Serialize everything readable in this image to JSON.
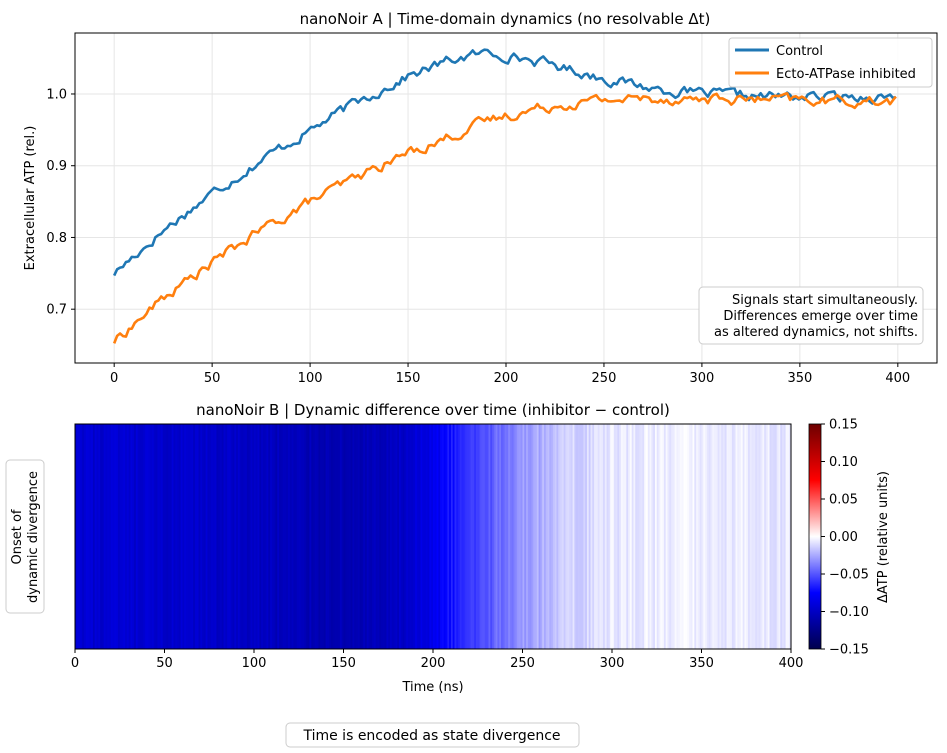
{
  "chart_data": [
    {
      "type": "line",
      "title": "nanoNoir A | Time-domain dynamics (no resolvable Δt)",
      "xlabel": "",
      "ylabel": "Extracellular ATP (rel.)",
      "xlim": [
        -20,
        420
      ],
      "ylim": [
        0.625,
        1.085
      ],
      "x_ticks": [
        0,
        50,
        100,
        150,
        200,
        250,
        300,
        350,
        400
      ],
      "y_ticks": [
        0.7,
        0.8,
        0.9,
        1.0
      ],
      "grid": true,
      "legend_position": "top-right",
      "x": [
        0,
        25,
        50,
        75,
        100,
        125,
        150,
        175,
        190,
        200,
        225,
        250,
        275,
        300,
        325,
        350,
        375,
        400
      ],
      "series": [
        {
          "name": "Control",
          "color": "#1f77b4",
          "values": [
            0.75,
            0.81,
            0.862,
            0.908,
            0.95,
            0.99,
            1.025,
            1.05,
            1.057,
            1.055,
            1.04,
            1.022,
            1.008,
            1.0,
            0.997,
            0.996,
            0.996,
            0.997
          ]
        },
        {
          "name": "Ecto-ATPase inhibited",
          "color": "#ff7f0e",
          "values": [
            0.655,
            0.715,
            0.765,
            0.81,
            0.85,
            0.885,
            0.918,
            0.945,
            0.962,
            0.97,
            0.985,
            0.992,
            0.994,
            0.993,
            0.992,
            0.991,
            0.99,
            0.99
          ]
        }
      ],
      "annotation": [
        "Signals start simultaneously.",
        "Differences emerge over time",
        "as altered dynamics, not shifts."
      ]
    },
    {
      "type": "heatmap",
      "title": "nanoNoir B | Dynamic difference over time (inhibitor − control)",
      "xlabel": "Time (ns)",
      "xlim": [
        0,
        400
      ],
      "x_ticks": [
        0,
        50,
        100,
        150,
        200,
        250,
        300,
        350,
        400
      ],
      "x": [
        0,
        25,
        50,
        75,
        100,
        125,
        150,
        175,
        200,
        210,
        225,
        250,
        275,
        300,
        325,
        350,
        375,
        400
      ],
      "values": [
        -0.095,
        -0.095,
        -0.097,
        -0.098,
        -0.1,
        -0.105,
        -0.107,
        -0.105,
        -0.085,
        -0.07,
        -0.055,
        -0.03,
        -0.014,
        -0.007,
        -0.005,
        -0.005,
        -0.006,
        -0.007
      ],
      "colorbar": {
        "label": "ΔATP (relative units)",
        "range": [
          -0.15,
          0.15
        ],
        "ticks": [
          0.15,
          0.1,
          0.05,
          0.0,
          -0.05,
          -0.1,
          -0.15
        ],
        "tick_labels": [
          "0.15",
          "0.10",
          "0.05",
          "0.00",
          "−0.05",
          "−0.10",
          "−0.15"
        ],
        "colors": [
          "#00004d",
          "#0000ff",
          "#ffffff",
          "#ff0000",
          "#6e0000"
        ]
      },
      "side_label": [
        "Onset of",
        "dynamic divergence"
      ]
    }
  ],
  "footer_note": "Time is encoded as state divergence"
}
